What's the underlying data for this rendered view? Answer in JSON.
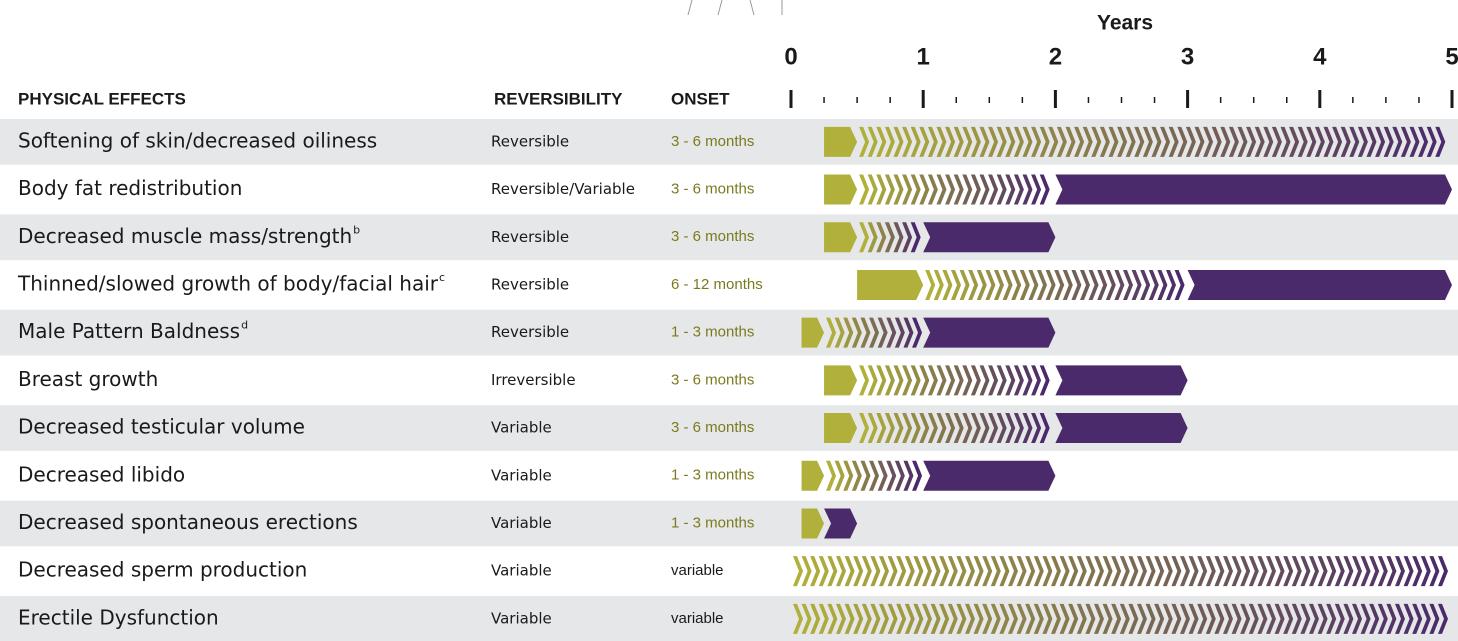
{
  "chart_data": {
    "type": "timeline",
    "axis_title": "Years",
    "xlim": [
      0,
      5
    ],
    "xticks": [
      0,
      1,
      2,
      3,
      4,
      5
    ],
    "minor_xticks": [
      0.25,
      0.5,
      0.75,
      1.25,
      1.5,
      1.75,
      2.25,
      2.5,
      2.75,
      3.25,
      3.5,
      3.75,
      4.25,
      4.5,
      4.75
    ],
    "headers": {
      "effect": "PHYSICAL EFFECTS",
      "reversibility": "REVERSIBILITY",
      "onset": "ONSET"
    },
    "colors": {
      "onset": "#b0b03a",
      "max": "#4a2a6a",
      "onset_text": "#7c7a1e"
    },
    "rows": [
      {
        "effect": "Softening of skin/decreased oiliness",
        "sup": null,
        "reversibility": "Reversible",
        "onset": "3 - 6 months",
        "start": 0.25,
        "onset_end": 0.5,
        "max_start": null,
        "end": 5
      },
      {
        "effect": "Body fat redistribution",
        "sup": null,
        "reversibility": "Reversible/Variable",
        "onset": "3 - 6 months",
        "start": 0.25,
        "onset_end": 0.5,
        "max_start": 2,
        "end": 5
      },
      {
        "effect": "Decreased muscle mass/strength",
        "sup": "b",
        "reversibility": "Reversible",
        "onset": "3 - 6 months",
        "start": 0.25,
        "onset_end": 0.5,
        "max_start": 1,
        "end": 2
      },
      {
        "effect": "Thinned/slowed growth of body/facial hair",
        "sup": "c",
        "reversibility": "Reversible",
        "onset": "6 - 12 months",
        "start": 0.5,
        "onset_end": 1,
        "max_start": 3,
        "end": 5
      },
      {
        "effect": "Male Pattern Baldness",
        "sup": "d",
        "reversibility": "Reversible",
        "onset": "1 - 3 months",
        "start": 0.08,
        "onset_end": 0.25,
        "max_start": 1,
        "end": 2
      },
      {
        "effect": "Breast growth",
        "sup": null,
        "reversibility": "Irreversible",
        "onset": "3 - 6 months",
        "start": 0.25,
        "onset_end": 0.5,
        "max_start": 2,
        "end": 3
      },
      {
        "effect": "Decreased testicular volume",
        "sup": null,
        "reversibility": "Variable",
        "onset": "3 - 6 months",
        "start": 0.25,
        "onset_end": 0.5,
        "max_start": 2,
        "end": 3
      },
      {
        "effect": "Decreased libido",
        "sup": null,
        "reversibility": "Variable",
        "onset": "1 - 3 months",
        "start": 0.08,
        "onset_end": 0.25,
        "max_start": 1,
        "end": 2
      },
      {
        "effect": "Decreased spontaneous erections",
        "sup": null,
        "reversibility": "Variable",
        "onset": "1 - 3 months",
        "start": 0.08,
        "onset_end": 0.25,
        "max_start": 0.25,
        "end": 0.5
      },
      {
        "effect": "Decreased sperm production",
        "sup": null,
        "reversibility": "Variable",
        "onset": "variable",
        "start": null,
        "onset_end": 0,
        "max_start": null,
        "end": 5
      },
      {
        "effect": "Erectile Dysfunction",
        "sup": null,
        "reversibility": "Variable",
        "onset": "variable",
        "start": null,
        "onset_end": 0,
        "max_start": null,
        "end": 5
      }
    ]
  }
}
